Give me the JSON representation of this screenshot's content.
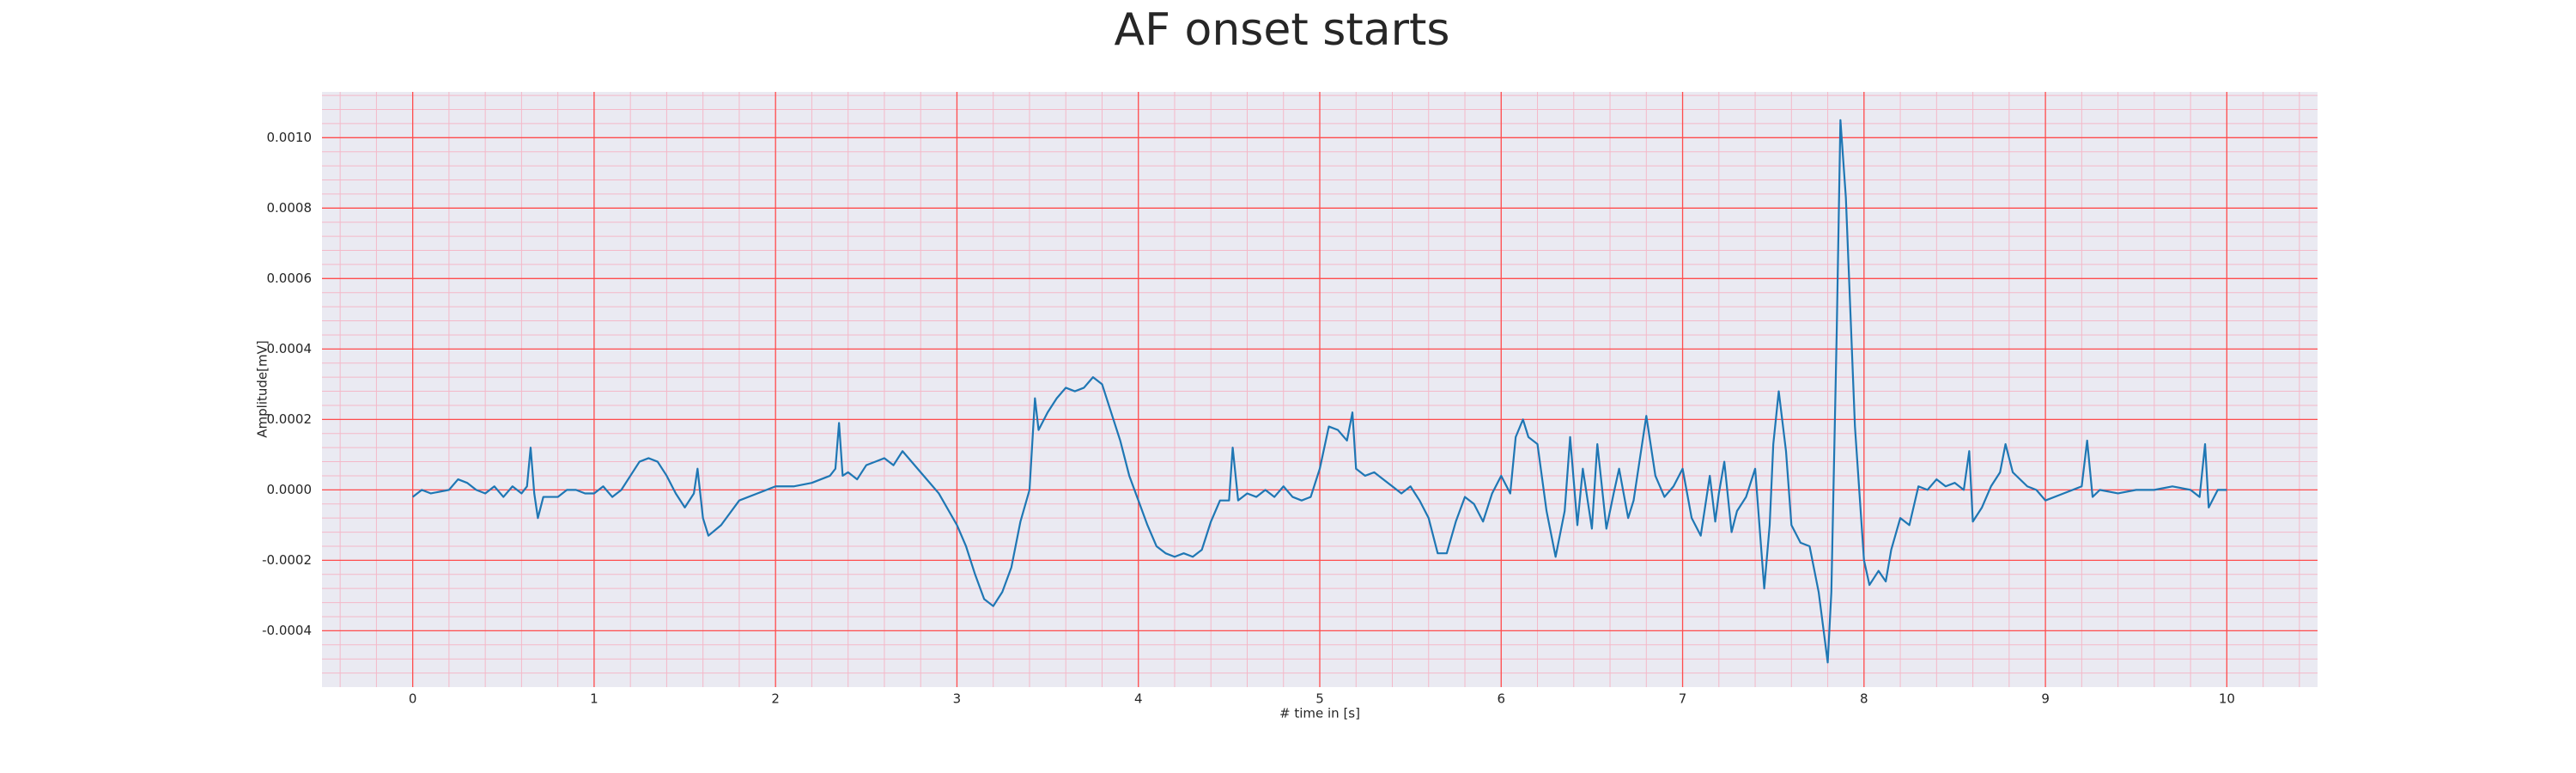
{
  "chart_data": {
    "type": "line",
    "title": "AF onset starts",
    "x_label": "# time in [s]",
    "y_label": "Amplitude[mV]",
    "xlim": [
      -0.5,
      10.5
    ],
    "ylim": [
      -0.00056,
      0.00113
    ],
    "xticks": [
      0,
      1,
      2,
      3,
      4,
      5,
      6,
      7,
      8,
      9,
      10
    ],
    "yticks": [
      {
        "value": -0.0004,
        "label": "-0.0004"
      },
      {
        "value": -0.0002,
        "label": "-0.0002"
      },
      {
        "value": 0,
        "label": "0.0000"
      },
      {
        "value": 0.0002,
        "label": "0.0002"
      },
      {
        "value": 0.0004,
        "label": "0.0004"
      },
      {
        "value": 0.0006,
        "label": "0.0006"
      },
      {
        "value": 0.0008,
        "label": "0.0008"
      },
      {
        "value": 0.001,
        "label": "0.0010"
      }
    ],
    "grid": true,
    "minor_grid": true,
    "grid_color": "#ff4d4d",
    "minor_grid_color": "#f4b8c8",
    "background": "#eaeaf2",
    "series": [
      {
        "color": "#1f77b4",
        "x": [
          0,
          0.05,
          0.1,
          0.2,
          0.25,
          0.3,
          0.35,
          0.4,
          0.45,
          0.5,
          0.55,
          0.6,
          0.63,
          0.65,
          0.67,
          0.69,
          0.72,
          0.8,
          0.85,
          0.9,
          0.95,
          1.0,
          1.05,
          1.1,
          1.15,
          1.2,
          1.25,
          1.3,
          1.35,
          1.4,
          1.45,
          1.5,
          1.55,
          1.57,
          1.6,
          1.63,
          1.7,
          1.8,
          1.9,
          2.0,
          2.1,
          2.2,
          2.3,
          2.33,
          2.35,
          2.37,
          2.4,
          2.45,
          2.5,
          2.6,
          2.65,
          2.7,
          2.8,
          2.9,
          3.0,
          3.05,
          3.1,
          3.15,
          3.2,
          3.25,
          3.3,
          3.35,
          3.4,
          3.43,
          3.45,
          3.5,
          3.55,
          3.6,
          3.65,
          3.7,
          3.75,
          3.8,
          3.85,
          3.9,
          3.95,
          4.0,
          4.05,
          4.1,
          4.15,
          4.2,
          4.25,
          4.3,
          4.35,
          4.4,
          4.45,
          4.5,
          4.52,
          4.55,
          4.6,
          4.65,
          4.7,
          4.75,
          4.8,
          4.85,
          4.9,
          4.95,
          5.0,
          5.05,
          5.1,
          5.15,
          5.18,
          5.2,
          5.25,
          5.3,
          5.35,
          5.4,
          5.45,
          5.5,
          5.55,
          5.6,
          5.65,
          5.7,
          5.75,
          5.8,
          5.85,
          5.9,
          5.95,
          6.0,
          6.05,
          6.08,
          6.12,
          6.15,
          6.2,
          6.25,
          6.3,
          6.35,
          6.38,
          6.42,
          6.45,
          6.5,
          6.53,
          6.58,
          6.62,
          6.65,
          6.7,
          6.73,
          6.8,
          6.85,
          6.9,
          6.95,
          7.0,
          7.05,
          7.1,
          7.15,
          7.18,
          7.2,
          7.23,
          7.27,
          7.3,
          7.35,
          7.4,
          7.45,
          7.48,
          7.5,
          7.53,
          7.57,
          7.6,
          7.65,
          7.7,
          7.75,
          7.8,
          7.82,
          7.85,
          7.87,
          7.9,
          7.95,
          8.0,
          8.03,
          8.08,
          8.12,
          8.15,
          8.2,
          8.25,
          8.3,
          8.35,
          8.4,
          8.45,
          8.5,
          8.55,
          8.58,
          8.6,
          8.65,
          8.7,
          8.75,
          8.78,
          8.82,
          8.9,
          8.95,
          9.0,
          9.1,
          9.2,
          9.23,
          9.26,
          9.3,
          9.4,
          9.5,
          9.6,
          9.7,
          9.8,
          9.85,
          9.88,
          9.9,
          9.95,
          10.0
        ],
        "values": [
          -2e-05,
          0,
          -1e-05,
          0,
          3e-05,
          2e-05,
          0,
          -1e-05,
          1e-05,
          -2e-05,
          1e-05,
          -1e-05,
          1e-05,
          0.00012,
          -1e-05,
          -8e-05,
          -2e-05,
          -2e-05,
          0,
          0,
          -1e-05,
          -1e-05,
          1e-05,
          -2e-05,
          0,
          4e-05,
          8e-05,
          9e-05,
          8e-05,
          4e-05,
          -1e-05,
          -5e-05,
          -1e-05,
          6e-05,
          -8e-05,
          -0.00013,
          -0.0001,
          -3e-05,
          -1e-05,
          1e-05,
          1e-05,
          2e-05,
          4e-05,
          6e-05,
          0.00019,
          4e-05,
          5e-05,
          3e-05,
          7e-05,
          9e-05,
          7e-05,
          0.00011,
          5e-05,
          -1e-05,
          -0.0001,
          -0.00016,
          -0.00024,
          -0.00031,
          -0.00033,
          -0.00029,
          -0.00022,
          -9e-05,
          0,
          0.00026,
          0.00017,
          0.00022,
          0.00026,
          0.00029,
          0.00028,
          0.00029,
          0.00032,
          0.0003,
          0.00022,
          0.00014,
          4e-05,
          -3e-05,
          -0.0001,
          -0.00016,
          -0.00018,
          -0.00019,
          -0.00018,
          -0.00019,
          -0.00017,
          -9e-05,
          -3e-05,
          -3e-05,
          0.00012,
          -3e-05,
          -1e-05,
          -2e-05,
          0,
          -2e-05,
          1e-05,
          -2e-05,
          -3e-05,
          -2e-05,
          6e-05,
          0.00018,
          0.00017,
          0.00014,
          0.00022,
          6e-05,
          4e-05,
          5e-05,
          3e-05,
          1e-05,
          -1e-05,
          1e-05,
          -3e-05,
          -8e-05,
          -0.00018,
          -0.00018,
          -9e-05,
          -2e-05,
          -4e-05,
          -9e-05,
          -1e-05,
          4e-05,
          -1e-05,
          0.00015,
          0.0002,
          0.00015,
          0.00013,
          -6e-05,
          -0.00019,
          -6e-05,
          0.00015,
          -0.0001,
          6e-05,
          -0.00011,
          0.00013,
          -0.00011,
          -1e-05,
          6e-05,
          -8e-05,
          -3e-05,
          0.00021,
          4e-05,
          -2e-05,
          1e-05,
          6e-05,
          -8e-05,
          -0.00013,
          4e-05,
          -9e-05,
          -1e-05,
          8e-05,
          -0.00012,
          -6e-05,
          -2e-05,
          6e-05,
          -0.00028,
          -0.0001,
          0.00013,
          0.00028,
          0.00011,
          -0.0001,
          -0.00015,
          -0.00016,
          -0.00029,
          -0.00049,
          -0.00029,
          0.00046,
          0.00105,
          0.00083,
          0.00018,
          -0.0002,
          -0.00027,
          -0.00023,
          -0.00026,
          -0.00017,
          -8e-05,
          -0.0001,
          1e-05,
          0,
          3e-05,
          1e-05,
          2e-05,
          0,
          0.00011,
          -9e-05,
          -5e-05,
          1e-05,
          5e-05,
          0.00013,
          5e-05,
          1e-05,
          0,
          -3e-05,
          -1e-05,
          1e-05,
          0.00014,
          -2e-05,
          0,
          -1e-05,
          0,
          0,
          1e-05,
          0,
          -2e-05,
          0.00013,
          -5e-05,
          0,
          0
        ]
      }
    ]
  }
}
